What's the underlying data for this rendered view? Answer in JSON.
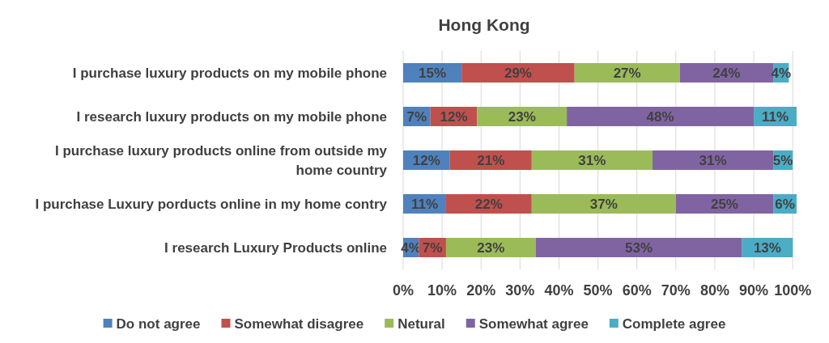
{
  "chart_data": {
    "type": "bar",
    "orientation": "horizontal",
    "stacked": true,
    "title": "Hong Kong",
    "categories": [
      "I purchase luxury products on my mobile phone",
      "I research luxury products on my mobile phone",
      "I purchase luxury products online from outside my home country",
      "I purchase Luxury porducts online in my home contry",
      "I research Luxury Products online"
    ],
    "series": [
      {
        "name": "Do not agree",
        "color": "#4f81bd",
        "values": [
          15,
          7,
          12,
          11,
          4
        ],
        "value_labels": [
          "15%",
          "7%",
          "12%",
          "11%",
          "4%"
        ]
      },
      {
        "name": "Somewhat disagree",
        "color": "#c0504d",
        "values": [
          29,
          12,
          21,
          22,
          7
        ],
        "value_labels": [
          "29%",
          "12%",
          "21%",
          "22%",
          "7%"
        ]
      },
      {
        "name": "Netural",
        "color": "#9bbb59",
        "values": [
          27,
          23,
          31,
          37,
          23
        ],
        "value_labels": [
          "27%",
          "23%",
          "31%",
          "37%",
          "23%"
        ]
      },
      {
        "name": "Somewhat agree",
        "color": "#8064a2",
        "values": [
          24,
          48,
          31,
          25,
          53
        ],
        "value_labels": [
          "24%",
          "48%",
          "31%",
          "25%",
          "53%"
        ]
      },
      {
        "name": "Complete agree",
        "color": "#4bacc6",
        "values": [
          4,
          11,
          5,
          6,
          13
        ],
        "value_labels": [
          "4%",
          "11%",
          "5%",
          "6%",
          "13%"
        ]
      }
    ],
    "xlim": [
      0,
      101
    ],
    "xticks": [
      {
        "value": 0,
        "label": "0%"
      },
      {
        "value": 10,
        "label": "10%"
      },
      {
        "value": 20,
        "label": "20%"
      },
      {
        "value": 30,
        "label": "30%"
      },
      {
        "value": 40,
        "label": "40%"
      },
      {
        "value": 50,
        "label": "50%"
      },
      {
        "value": 60,
        "label": "60%"
      },
      {
        "value": 70,
        "label": "70%"
      },
      {
        "value": 80,
        "label": "80%"
      },
      {
        "value": 90,
        "label": "90%"
      },
      {
        "value": 100,
        "label": "100%"
      }
    ],
    "grid": "x",
    "legend": "bottom"
  }
}
